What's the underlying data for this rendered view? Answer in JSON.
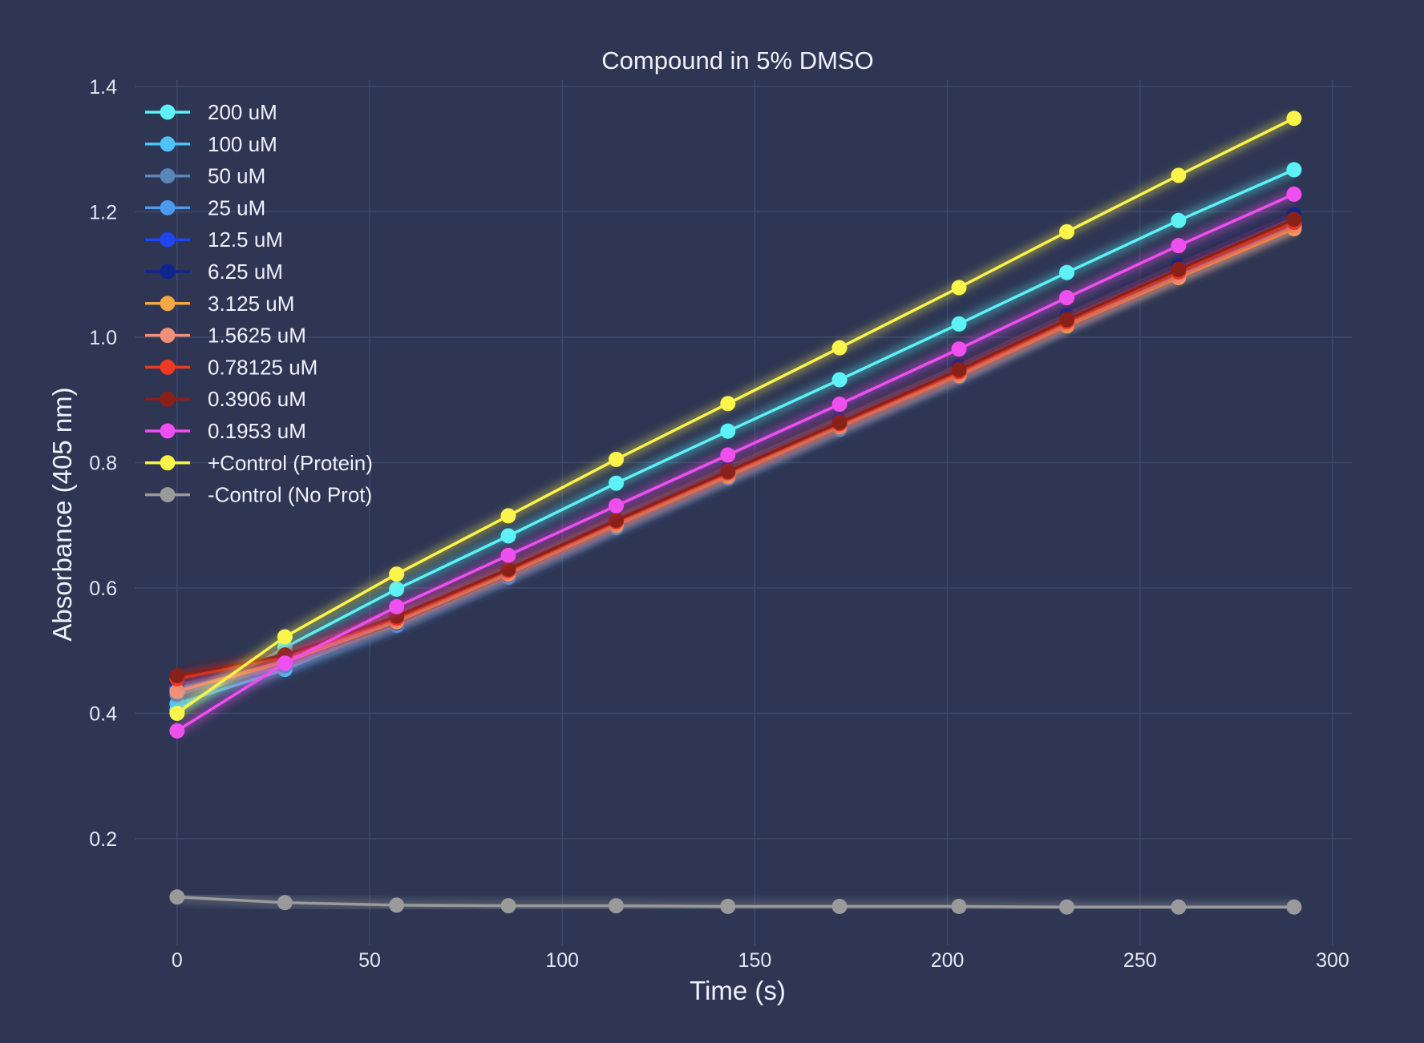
{
  "chart_data": {
    "type": "line",
    "title": "Compound in 5% DMSO",
    "xlabel": "Time (s)",
    "ylabel": "Absorbance (405 nm)",
    "xlim": [
      -11,
      305
    ],
    "ylim": [
      0.03,
      1.41
    ],
    "xticks": [
      0,
      50,
      100,
      150,
      200,
      250,
      300
    ],
    "yticks": [
      0.2,
      0.4,
      0.6,
      0.8,
      1.0,
      1.2,
      1.4
    ],
    "ytick_labels": [
      "0.2",
      "0.4",
      "0.6",
      "0.8",
      "1.0",
      "1.2",
      "1.4"
    ],
    "grid": true,
    "legend_position": "top-left",
    "background_color": "#2e3654",
    "x": [
      0,
      28,
      57,
      86,
      114,
      143,
      172,
      203,
      231,
      260,
      290
    ],
    "series": [
      {
        "name": "200 uM",
        "color": "#5cf2f6",
        "values": [
          0.405,
          0.505,
          0.598,
          0.683,
          0.767,
          0.85,
          0.932,
          1.021,
          1.103,
          1.186,
          1.267
        ]
      },
      {
        "name": "100 uM",
        "color": "#4fc3f7",
        "values": [
          0.415,
          0.47,
          0.545,
          0.622,
          0.7,
          0.779,
          0.857,
          0.94,
          1.022,
          1.101,
          1.18
        ]
      },
      {
        "name": "50 uM",
        "color": "#5b86b8",
        "values": [
          0.43,
          0.476,
          0.54,
          0.617,
          0.696,
          0.775,
          0.853,
          0.937,
          1.019,
          1.098,
          1.177
        ]
      },
      {
        "name": "25 uM",
        "color": "#4a9bef",
        "values": [
          0.44,
          0.478,
          0.542,
          0.619,
          0.698,
          0.777,
          0.856,
          0.939,
          1.02,
          1.1,
          1.179
        ]
      },
      {
        "name": "12.5 uM",
        "color": "#1f45f0",
        "values": [
          0.445,
          0.48,
          0.544,
          0.621,
          0.7,
          0.778,
          0.857,
          0.941,
          1.021,
          1.102,
          1.181
        ]
      },
      {
        "name": "6.25 uM",
        "color": "#0f2690",
        "values": [
          0.45,
          0.485,
          0.552,
          0.63,
          0.71,
          0.79,
          0.868,
          0.953,
          1.034,
          1.114,
          1.195
        ]
      },
      {
        "name": "3.125 uM",
        "color": "#f5a742",
        "values": [
          0.435,
          0.482,
          0.546,
          0.622,
          0.7,
          0.778,
          0.857,
          0.939,
          1.018,
          1.095,
          1.173
        ]
      },
      {
        "name": "1.5625 uM",
        "color": "#f0907a",
        "values": [
          0.435,
          0.484,
          0.548,
          0.624,
          0.702,
          0.78,
          0.858,
          0.94,
          1.02,
          1.097,
          1.176
        ]
      },
      {
        "name": "0.78125 uM",
        "color": "#ee3a22",
        "values": [
          0.455,
          0.49,
          0.552,
          0.628,
          0.706,
          0.784,
          0.862,
          0.945,
          1.025,
          1.104,
          1.183
        ]
      },
      {
        "name": "0.3906 uM",
        "color": "#8a2118",
        "values": [
          0.46,
          0.493,
          0.555,
          0.63,
          0.708,
          0.786,
          0.864,
          0.948,
          1.028,
          1.108,
          1.188
        ]
      },
      {
        "name": "0.1953 uM",
        "color": "#f04ff0",
        "values": [
          0.372,
          0.48,
          0.57,
          0.652,
          0.731,
          0.812,
          0.893,
          0.981,
          1.063,
          1.146,
          1.228
        ]
      },
      {
        "name": "+Control (Protein)",
        "color": "#fbf44a",
        "values": [
          0.4,
          0.522,
          0.622,
          0.715,
          0.805,
          0.894,
          0.983,
          1.079,
          1.168,
          1.258,
          1.349
        ]
      },
      {
        "name": "-Control (No Prot)",
        "color": "#9a9a9a",
        "values": [
          0.107,
          0.098,
          0.094,
          0.093,
          0.093,
          0.092,
          0.092,
          0.092,
          0.091,
          0.091,
          0.091
        ]
      }
    ]
  }
}
